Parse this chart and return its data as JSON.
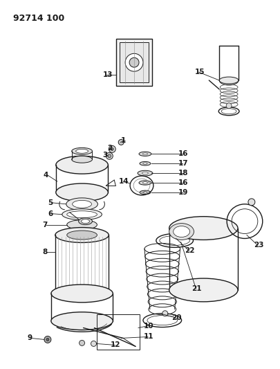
{
  "title": "92714 100",
  "bg_color": "#ffffff",
  "line_color": "#1a1a1a",
  "label_color": "#1a1a1a",
  "title_fontsize": 9,
  "label_fontsize": 7.5,
  "figsize": [
    4.05,
    5.33
  ],
  "dpi": 100
}
